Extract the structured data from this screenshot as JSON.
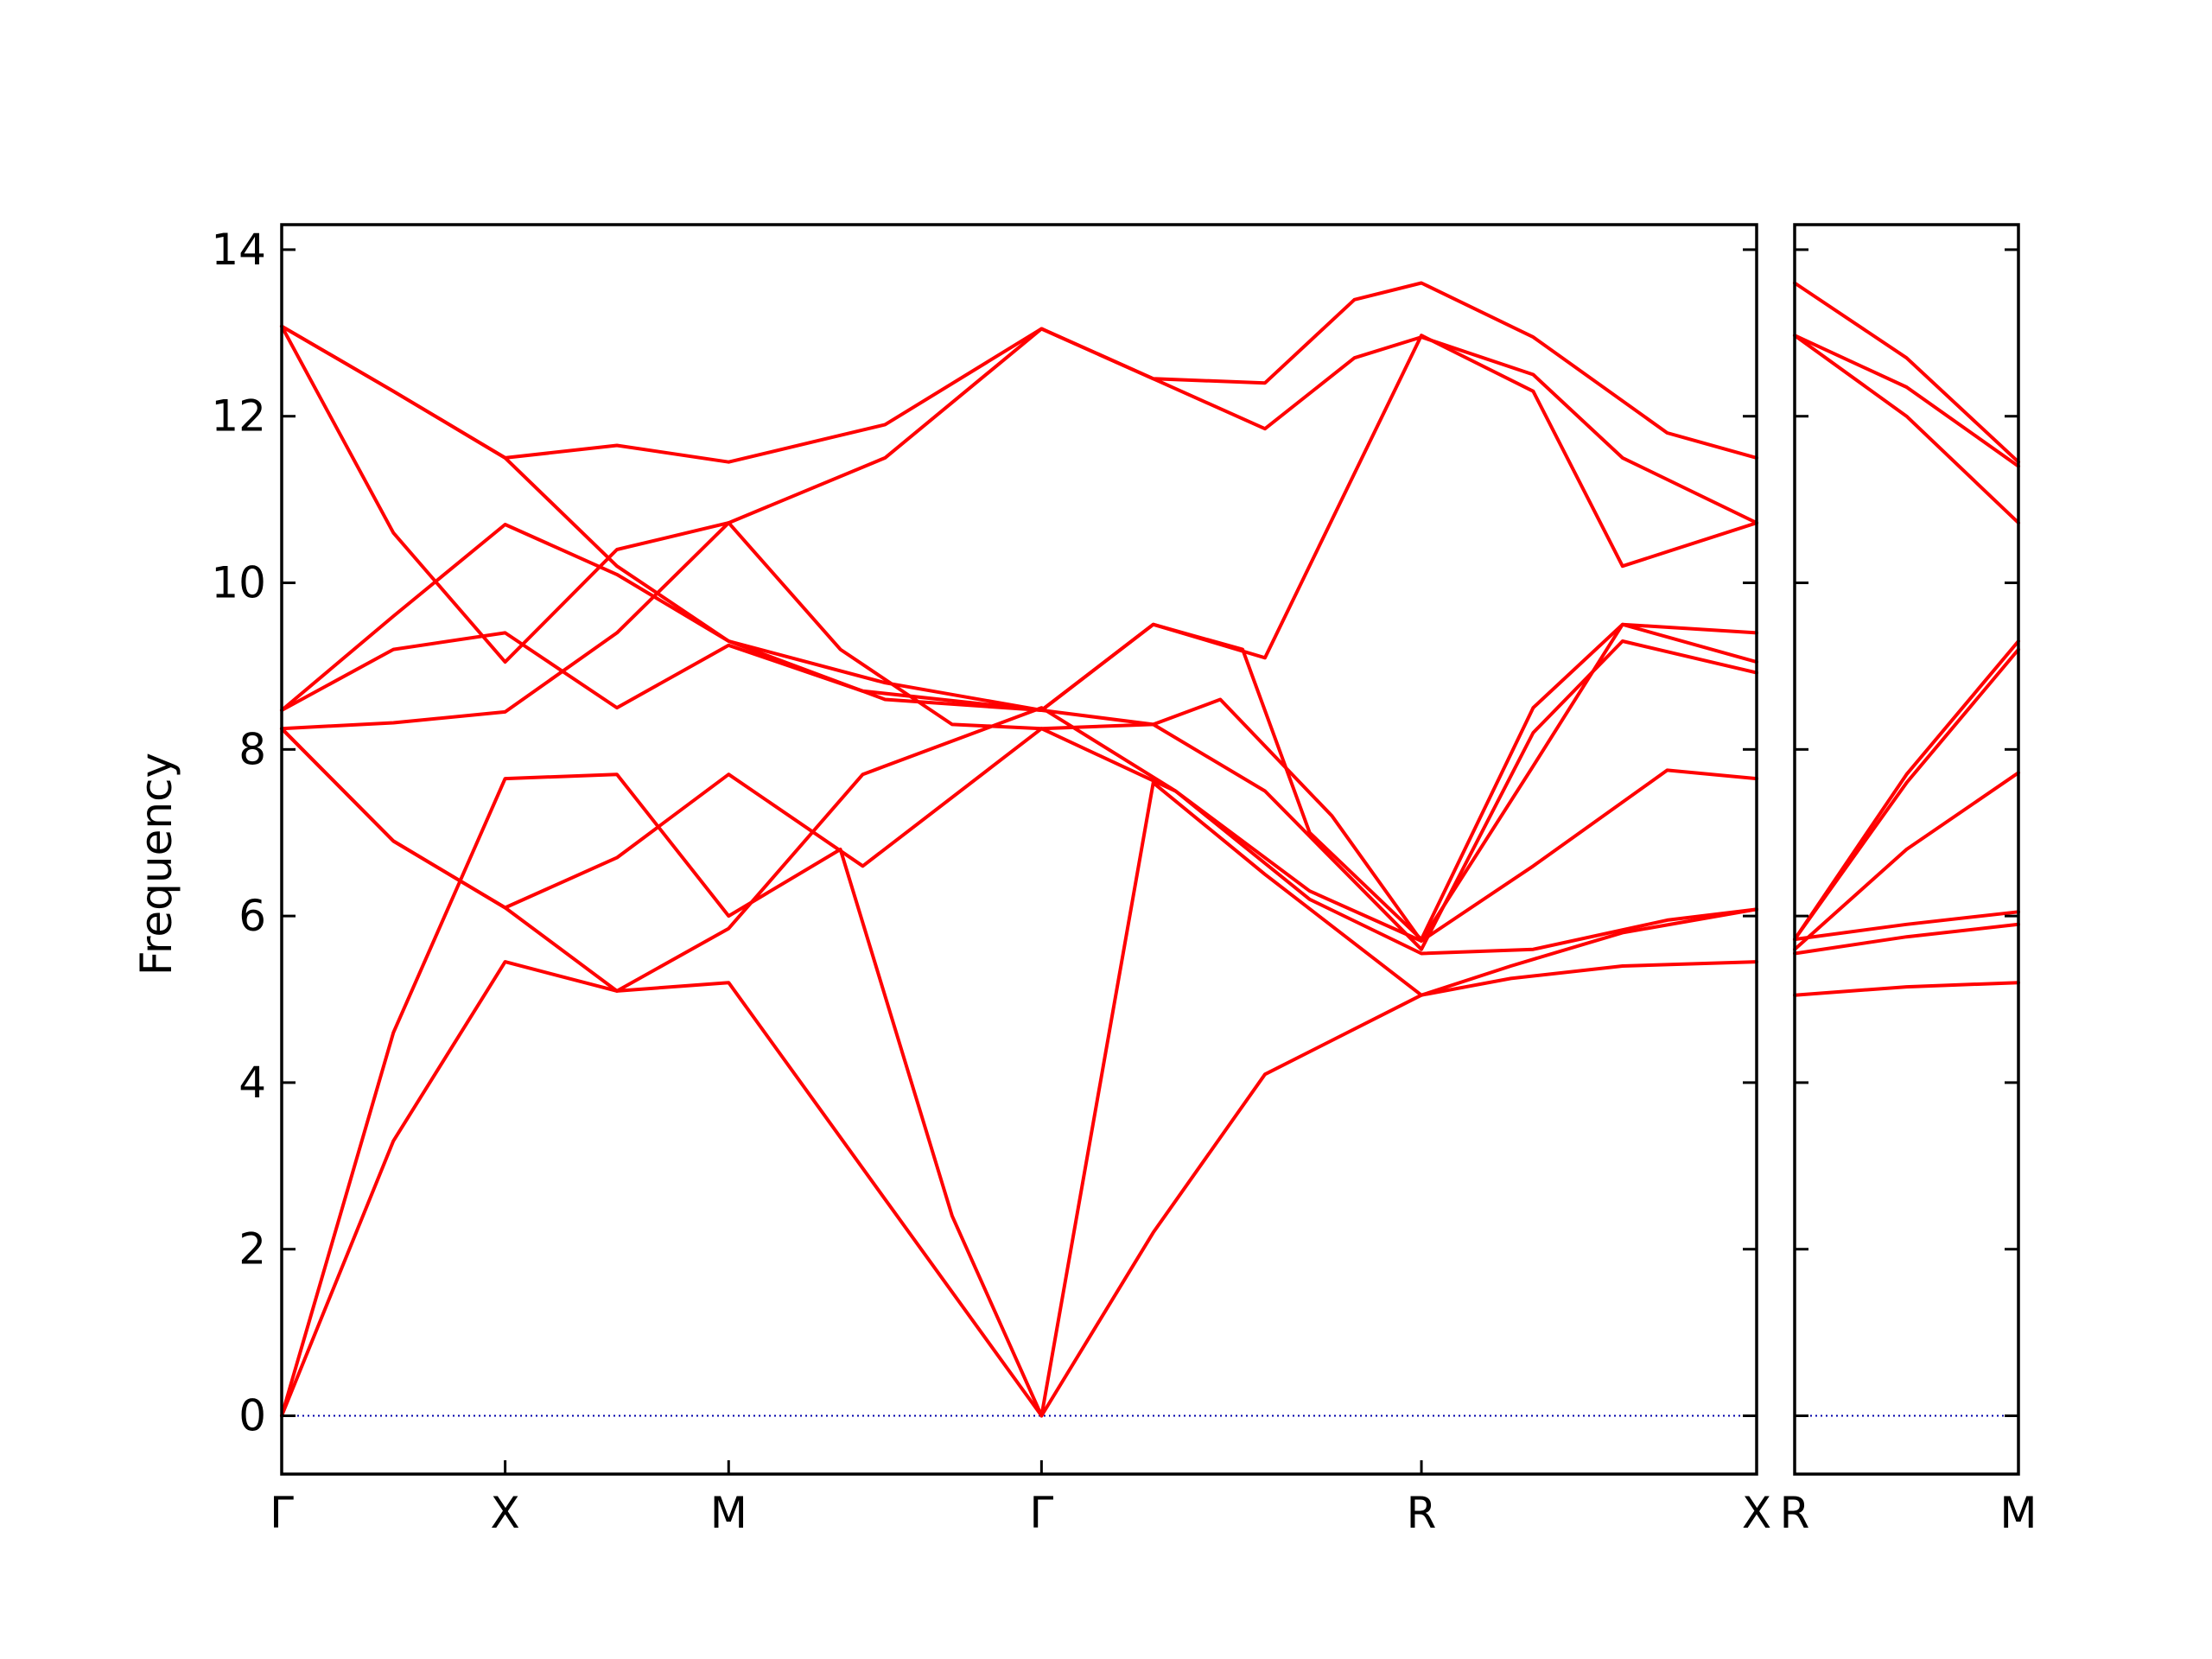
{
  "chart_data": {
    "type": "line",
    "ylabel": "Frequency",
    "ylim": [
      -0.7,
      14.3
    ],
    "yticks": [
      0,
      2,
      4,
      6,
      8,
      10,
      12,
      14
    ],
    "ytick_labels": [
      "0",
      "2",
      "4",
      "6",
      "8",
      "10",
      "12",
      "14"
    ],
    "line_color": "#ff0000",
    "zero_line_color": "#0000aa",
    "panels": [
      {
        "name": "main",
        "xlim": [
          0,
          6.6
        ],
        "xticks": [
          0,
          1.0,
          2.0,
          3.4,
          5.1,
          6.6
        ],
        "xtick_labels": [
          "Γ",
          "X",
          "M",
          "Γ",
          "R",
          "X"
        ],
        "branches": [
          {
            "x": [
              0,
              0.5,
              1.0,
              1.5,
              2.0,
              2.7,
              3.4,
              3.9,
              4.4,
              5.1,
              5.5,
              6.0,
              6.6
            ],
            "y": [
              0,
              3.3,
              5.45,
              5.1,
              5.2,
              2.6,
              0,
              2.2,
              4.1,
              5.05,
              5.25,
              5.4,
              5.45
            ]
          },
          {
            "x": [
              0,
              0.5,
              1.0,
              1.5,
              2.0,
              2.5,
              3.0,
              3.4,
              3.9,
              4.4,
              5.1,
              5.5,
              6.0,
              6.6
            ],
            "y": [
              0,
              4.6,
              7.65,
              7.7,
              6.0,
              6.8,
              2.4,
              0,
              7.6,
              6.5,
              5.05,
              5.4,
              5.8,
              6.08
            ]
          },
          {
            "x": [
              0,
              0.5,
              1.0,
              1.5,
              2.0,
              2.6,
              3.4,
              4.0,
              4.6,
              5.1,
              5.6,
              6.2,
              6.6
            ],
            "y": [
              8.25,
              6.9,
              6.1,
              5.1,
              5.85,
              7.7,
              8.5,
              7.5,
              6.2,
              5.55,
              5.6,
              5.95,
              6.08
            ]
          },
          {
            "x": [
              0,
              0.5,
              1.0,
              1.5,
              2.0,
              2.6,
              3.4,
              4.0,
              4.6,
              5.1,
              5.6,
              6.2,
              6.6
            ],
            "y": [
              8.25,
              6.9,
              6.1,
              6.7,
              7.7,
              6.6,
              8.25,
              7.5,
              6.3,
              5.7,
              6.6,
              7.75,
              7.65
            ]
          },
          {
            "x": [
              0,
              0.5,
              1.0,
              1.5,
              2.0,
              2.5,
              3.0,
              3.4,
              3.9,
              4.2,
              4.7,
              5.1,
              5.6,
              6.0,
              6.6
            ],
            "y": [
              8.25,
              8.32,
              8.45,
              9.4,
              10.72,
              9.2,
              8.3,
              8.25,
              8.3,
              8.6,
              7.2,
              5.7,
              7.8,
              9.5,
              9.4
            ]
          },
          {
            "x": [
              0,
              0.5,
              1.0,
              1.5,
              2.0,
              2.6,
              3.4,
              3.9,
              4.3,
              4.6,
              5.1,
              5.6,
              6.0,
              6.6
            ],
            "y": [
              8.47,
              9.2,
              9.4,
              8.5,
              9.25,
              8.7,
              8.47,
              9.5,
              9.2,
              7.0,
              5.72,
              8.5,
              9.5,
              9.05
            ]
          },
          {
            "x": [
              0,
              0.5,
              1.0,
              1.5,
              2.0,
              2.7,
              3.4,
              3.9,
              4.4,
              5.1,
              5.6,
              6.0,
              6.6
            ],
            "y": [
              8.47,
              9.6,
              10.7,
              10.1,
              9.3,
              8.8,
              8.47,
              8.3,
              7.5,
              5.6,
              8.2,
              9.3,
              8.92
            ]
          },
          {
            "x": [
              0,
              0.5,
              1.0,
              1.5,
              2.0,
              2.7,
              3.4,
              3.9,
              4.4,
              4.8,
              5.1,
              5.6,
              6.0,
              6.6
            ],
            "y": [
              13.08,
              10.6,
              9.05,
              10.4,
              10.72,
              11.5,
              13.05,
              12.45,
              11.85,
              12.7,
              12.95,
              12.5,
              11.5,
              10.72
            ]
          },
          {
            "x": [
              0,
              0.5,
              1.0,
              1.5,
              2.0,
              2.7,
              3.4,
              3.9,
              4.4,
              4.8,
              5.1,
              5.6,
              6.2,
              6.6
            ],
            "y": [
              13.08,
              12.3,
              11.5,
              11.65,
              11.45,
              11.9,
              13.05,
              12.45,
              12.4,
              13.4,
              13.6,
              12.95,
              11.8,
              11.5
            ]
          },
          {
            "x": [
              0,
              0.5,
              1.0,
              1.5,
              2.0,
              2.7,
              3.4,
              3.9,
              4.4,
              5.1,
              5.6,
              6.0,
              6.6
            ],
            "y": [
              13.08,
              12.3,
              11.5,
              10.2,
              9.3,
              8.6,
              8.47,
              9.5,
              9.1,
              12.97,
              12.3,
              10.2,
              10.72
            ]
          }
        ]
      },
      {
        "name": "right",
        "xlim": [
          0,
          1
        ],
        "xticks": [
          0,
          1
        ],
        "xtick_labels": [
          "R",
          "M"
        ],
        "branches": [
          {
            "x": [
              0,
              0.5,
              1
            ],
            "y": [
              5.05,
              5.15,
              5.2
            ]
          },
          {
            "x": [
              0,
              0.5,
              1
            ],
            "y": [
              5.55,
              5.75,
              5.9
            ]
          },
          {
            "x": [
              0,
              0.5,
              1
            ],
            "y": [
              5.72,
              5.9,
              6.05
            ]
          },
          {
            "x": [
              0,
              0.5,
              1
            ],
            "y": [
              5.6,
              6.8,
              7.72
            ]
          },
          {
            "x": [
              0,
              0.5,
              1
            ],
            "y": [
              5.72,
              7.6,
              9.2
            ]
          },
          {
            "x": [
              0,
              0.5,
              1
            ],
            "y": [
              5.72,
              7.7,
              9.3
            ]
          },
          {
            "x": [
              0,
              0.5,
              1
            ],
            "y": [
              12.97,
              12.0,
              10.72
            ]
          },
          {
            "x": [
              0,
              0.5,
              1
            ],
            "y": [
              12.97,
              12.35,
              11.4
            ]
          },
          {
            "x": [
              0,
              0.5,
              1
            ],
            "y": [
              13.6,
              12.7,
              11.45
            ]
          }
        ]
      }
    ]
  }
}
